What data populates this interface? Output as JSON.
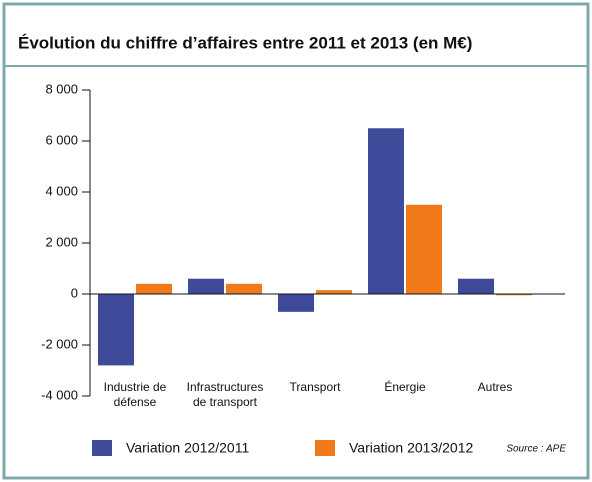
{
  "chart_data": {
    "type": "bar",
    "title": "Évolution du chiffre d’affaires entre 2011 et 2013 (en M€)",
    "categories": [
      "Industrie de défense",
      "Infrastructures de transport",
      "Transport",
      "Énergie",
      "Autres"
    ],
    "series": [
      {
        "name": "Variation 2012/2011",
        "color": "#3f4a9b",
        "values": [
          -2800,
          600,
          -700,
          6500,
          600
        ]
      },
      {
        "name": "Variation 2013/2012",
        "color": "#f07a1a",
        "values": [
          400,
          400,
          150,
          3500,
          -50
        ]
      }
    ],
    "ylim": [
      -4000,
      8000
    ],
    "yticks": [
      {
        "value": -4000,
        "label": "-4 000"
      },
      {
        "value": -2000,
        "label": "-2 000"
      },
      0,
      {
        "value": 2000,
        "label": "2 000"
      },
      {
        "value": 4000,
        "label": "4 000"
      },
      {
        "value": 6000,
        "label": "6 000"
      },
      {
        "value": 8000,
        "label": "8 000"
      }
    ],
    "source": "Source : APE",
    "legend": "bottom"
  }
}
